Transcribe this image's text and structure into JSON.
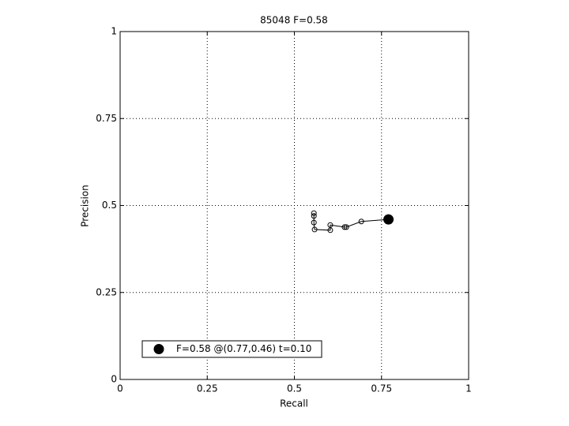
{
  "chart_data": {
    "type": "line",
    "title": "85048 F=0.58",
    "x_label": "Recall",
    "y_label": "Precision",
    "xlim": [
      0,
      1
    ],
    "ylim": [
      0,
      1
    ],
    "xticks": [
      0,
      0.25,
      0.5,
      0.75,
      1
    ],
    "yticks": [
      0,
      0.25,
      0.5,
      0.75,
      1
    ],
    "grid": true,
    "legend": "lower left",
    "series": [
      {
        "color": "#000000",
        "filled": false,
        "x": [
          0.556,
          0.556,
          0.556,
          0.558,
          0.603,
          0.603,
          0.644,
          0.649,
          0.692,
          0.77
        ],
        "values": [
          0.478,
          0.47,
          0.451,
          0.431,
          0.429,
          0.444,
          0.438,
          0.438,
          0.454,
          0.46
        ]
      },
      {
        "name": "F=0.58 @(0.77,0.46) t=0.10",
        "color": "#000000",
        "filled": true,
        "x": [
          0.77
        ],
        "values": [
          0.46
        ]
      }
    ]
  }
}
